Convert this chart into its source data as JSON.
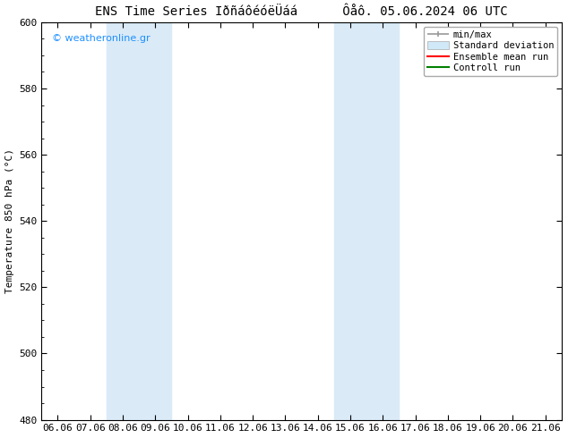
{
  "title": "ENS Time Series IðñáôéóëÜáá      Ôåô. 05.06.2024 06 UTC",
  "ylabel": "Temperature 850 hPa (°C)",
  "ylim": [
    480,
    600
  ],
  "yticks": [
    480,
    500,
    520,
    540,
    560,
    580,
    600
  ],
  "xtick_labels": [
    "06.06",
    "07.06",
    "08.06",
    "09.06",
    "10.06",
    "11.06",
    "12.06",
    "13.06",
    "14.06",
    "15.06",
    "16.06",
    "17.06",
    "18.06",
    "19.06",
    "20.06",
    "21.06"
  ],
  "shaded_bands": [
    {
      "xstart": 2,
      "xend": 4,
      "color": "#daeaf7"
    },
    {
      "xstart": 9,
      "xend": 11,
      "color": "#daeaf7"
    }
  ],
  "watermark": "© weatheronline.gr",
  "watermark_color": "#1e90ff",
  "background_color": "#ffffff",
  "plot_bg_color": "#ffffff",
  "legend_labels": [
    "min/max",
    "Standard deviation",
    "Ensemble mean run",
    "Controll run"
  ],
  "legend_colors": [
    "#999999",
    "#d0e8f8",
    "#ff0000",
    "#008000"
  ],
  "title_fontsize": 10,
  "axis_fontsize": 8,
  "tick_fontsize": 8
}
